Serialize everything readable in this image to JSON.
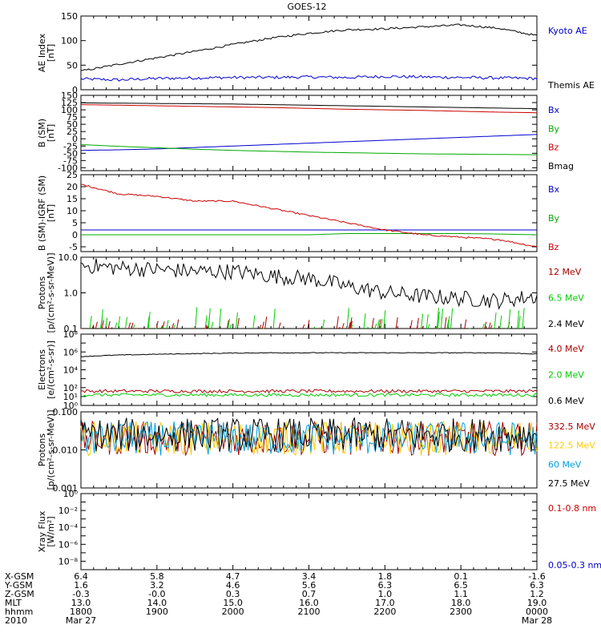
{
  "title": "GOES-12",
  "panels": [
    {
      "ylabel": [
        "AE Index",
        "[nT]"
      ],
      "type": "line",
      "scale": "linear",
      "ylim": [
        0,
        150
      ],
      "ticks": [
        0,
        50,
        100,
        150
      ],
      "tick_labels": [
        "0",
        "50",
        "100",
        "150"
      ],
      "legend": [
        {
          "label": "Kyoto AE",
          "color": "#0000cc"
        },
        {
          "label": "Themis AE",
          "color": "#000000"
        }
      ]
    },
    {
      "ylabel": [
        "B (SM)",
        "[nT]"
      ],
      "type": "line",
      "scale": "linear",
      "ylim": [
        -110,
        150
      ],
      "ticks": [
        -100,
        -75,
        -50,
        -25,
        0,
        25,
        50,
        75,
        100,
        125,
        150
      ],
      "tick_labels": [
        "-100",
        "-75",
        "-50",
        "-25",
        "0",
        "25",
        "50",
        "75",
        "100",
        "125",
        "150"
      ],
      "legend": [
        {
          "label": "Bx",
          "color": "#0000cc"
        },
        {
          "label": "By",
          "color": "#00aa00"
        },
        {
          "label": "Bz",
          "color": "#cc0000"
        },
        {
          "label": "Bmag",
          "color": "#000000"
        }
      ]
    },
    {
      "ylabel": [
        "B (SM)-IGRF (SM)",
        "[nT]"
      ],
      "type": "line",
      "scale": "linear",
      "ylim": [
        -7,
        25
      ],
      "ticks": [
        -5,
        0,
        5,
        10,
        15,
        20,
        25
      ],
      "tick_labels": [
        "-5",
        "0",
        "5",
        "10",
        "15",
        "20",
        "25"
      ],
      "legend": [
        {
          "label": "Bx",
          "color": "#0000cc"
        },
        {
          "label": "By",
          "color": "#00aa00"
        },
        {
          "label": "Bz",
          "color": "#cc0000"
        }
      ]
    },
    {
      "ylabel": [
        "Protons",
        "[p/(cm²-s-sr-MeV)]"
      ],
      "type": "line",
      "scale": "log",
      "ylim_log": [
        -1,
        1
      ],
      "ticks": [
        -1,
        0,
        1
      ],
      "tick_labels": [
        "0.1",
        "1.0",
        "10.0"
      ],
      "legend": [
        {
          "label": "12 MeV",
          "color": "#aa0000"
        },
        {
          "label": "6.5 MeV",
          "color": "#00cc00"
        },
        {
          "label": "2.4 MeV",
          "color": "#000000"
        }
      ]
    },
    {
      "ylabel": [
        "Electrons",
        "[e/(cm²-s-sr)]"
      ],
      "type": "line",
      "scale": "log",
      "ylim_log": [
        0,
        8
      ],
      "ticks": [
        0,
        1,
        2,
        3,
        4,
        5,
        6,
        7,
        8
      ],
      "tick_labels": [
        "10⁰",
        "10¹",
        "10²",
        "",
        "10⁴",
        "",
        "10⁶",
        "",
        "10⁸"
      ],
      "legend": [
        {
          "label": "4.0 MeV",
          "color": "#aa0000"
        },
        {
          "label": "2.0 MeV",
          "color": "#00cc00"
        },
        {
          "label": "0.6 MeV",
          "color": "#000000"
        }
      ]
    },
    {
      "ylabel": [
        "Protons",
        "[p/(cm²-s-sr-MeV)]"
      ],
      "type": "line",
      "scale": "log",
      "ylim_log": [
        -3,
        -1
      ],
      "ticks": [
        -3,
        -2,
        -1
      ],
      "tick_labels": [
        "0.001",
        "0.010",
        "0.100"
      ],
      "legend": [
        {
          "label": "332.5 MeV",
          "color": "#aa0000"
        },
        {
          "label": "122.5 MeV",
          "color": "#ffcc00"
        },
        {
          "label": "60 MeV",
          "color": "#00a0e0"
        },
        {
          "label": "27.5 MeV",
          "color": "#000000"
        }
      ]
    },
    {
      "ylabel": [
        "Xray Flux",
        "[W/m²]"
      ],
      "type": "line",
      "scale": "log",
      "ylim_log": [
        -9,
        0
      ],
      "ticks": [
        -9,
        -8,
        -7,
        -6,
        -5,
        -4,
        -3,
        -2,
        -1,
        0
      ],
      "tick_labels": [
        "",
        "10⁻⁸",
        "",
        "10⁻⁶",
        "",
        "10⁻⁴",
        "",
        "10⁻²",
        "",
        "10⁰"
      ],
      "legend": [
        {
          "label": "0.1-0.8 nm",
          "color": "#cc0000"
        },
        {
          "label": "0.05-0.3 nm",
          "color": "#0000cc"
        }
      ]
    }
  ],
  "x_axis": {
    "row_labels": [
      "X-GSM",
      "Y-GSM",
      "Z-GSM",
      "MLT",
      "hhmm",
      "2010"
    ],
    "columns": [
      {
        "values": [
          "6.4",
          "1.6",
          "-0.3",
          "13.0",
          "1800",
          "Mar 27"
        ]
      },
      {
        "values": [
          "5.8",
          "3.2",
          "-0.0",
          "14.0",
          "1900",
          ""
        ]
      },
      {
        "values": [
          "4.7",
          "4.6",
          "0.3",
          "15.0",
          "2000",
          ""
        ]
      },
      {
        "values": [
          "3.4",
          "5.6",
          "0.7",
          "16.0",
          "2100",
          ""
        ]
      },
      {
        "values": [
          "1.8",
          "6.3",
          "1.0",
          "17.0",
          "2200",
          ""
        ]
      },
      {
        "values": [
          "0.1",
          "6.5",
          "1.1",
          "18.0",
          "2300",
          ""
        ]
      },
      {
        "values": [
          "-1.6",
          "6.3",
          "1.2",
          "19.0",
          "0000",
          "Mar 28"
        ]
      }
    ]
  },
  "chart_data": {
    "type": "line",
    "title": "GOES-12",
    "x": [
      "1800",
      "1830",
      "1900",
      "1930",
      "2000",
      "2030",
      "2100",
      "2130",
      "2200",
      "2230",
      "2300",
      "2330",
      "0000"
    ],
    "panels": [
      {
        "ylabel": "AE Index [nT]",
        "series": [
          {
            "name": "Kyoto AE",
            "values": [
              22,
              20,
              23,
              24,
              25,
              25,
              26,
              25,
              27,
              26,
              25,
              24,
              23
            ]
          },
          {
            "name": "Themis AE",
            "values": [
              38,
              52,
              65,
              78,
              92,
              105,
              115,
              122,
              124,
              128,
              132,
              125,
              110
            ]
          }
        ]
      },
      {
        "ylabel": "B (SM) [nT]",
        "series": [
          {
            "name": "Bx",
            "values": [
              -40,
              -38,
              -35,
              -30,
              -25,
              -20,
              -15,
              -10,
              -5,
              0,
              5,
              10,
              15
            ]
          },
          {
            "name": "By",
            "values": [
              -20,
              -26,
              -31,
              -36,
              -40,
              -43,
              -46,
              -48,
              -50,
              -52,
              -53,
              -54,
              -55
            ]
          },
          {
            "name": "Bz",
            "values": [
              118,
              116,
              114,
              112,
              110,
              108,
              105,
              102,
              100,
              98,
              95,
              92,
              90
            ]
          },
          {
            "name": "Bmag",
            "values": [
              124,
              123,
              122,
              121,
              120,
              118,
              116,
              114,
              112,
              110,
              108,
              106,
              104
            ]
          }
        ]
      },
      {
        "ylabel": "B (SM)-IGRF (SM) [nT]",
        "series": [
          {
            "name": "Bx",
            "values": [
              2,
              2,
              2,
              2,
              2,
              2,
              2,
              2,
              2,
              2,
              2,
              2,
              2
            ]
          },
          {
            "name": "By",
            "values": [
              0,
              0,
              0,
              0,
              0,
              0,
              0,
              0.5,
              0.5,
              0.5,
              0.5,
              0.3,
              0
            ]
          },
          {
            "name": "Bz",
            "values": [
              21,
              17,
              16,
              14,
              14,
              11,
              8,
              5,
              2,
              0,
              -1,
              -2,
              -5
            ]
          }
        ]
      },
      {
        "ylabel": "Protons [p/(cm²-s-sr-MeV)]",
        "series": [
          {
            "name": "12 MeV",
            "values": [
              0.1,
              0.1,
              0.1,
              0.1,
              0.1,
              0.1,
              0.1,
              0.1,
              0.1,
              0.1,
              0.1,
              0.1,
              0.1
            ]
          },
          {
            "name": "6.5 MeV",
            "values": [
              0.2,
              0.2,
              0.2,
              0.2,
              0.2,
              0.2,
              0.2,
              0.2,
              0.2,
              0.2,
              0.2,
              0.2,
              0.2
            ]
          },
          {
            "name": "2.4 MeV",
            "values": [
              6,
              5,
              4.5,
              4,
              4,
              3,
              2.5,
              1.5,
              1,
              0.8,
              0.7,
              0.6,
              0.8
            ]
          }
        ]
      },
      {
        "ylabel": "Electrons [e/(cm²-s-sr)]",
        "series": [
          {
            "name": "4.0 MeV",
            "values": [
              40,
              40,
              40,
              40,
              40,
              40,
              40,
              40,
              40,
              40,
              40,
              40,
              40
            ]
          },
          {
            "name": "2.0 MeV",
            "values": [
              15,
              15,
              15,
              15,
              15,
              15,
              15,
              15,
              15,
              15,
              15,
              15,
              15
            ]
          },
          {
            "name": "0.6 MeV",
            "values": [
              300000,
              450000,
              550000,
              650000,
              750000,
              800000,
              800000,
              800000,
              800000,
              800000,
              800000,
              800000,
              600000
            ]
          }
        ]
      },
      {
        "ylabel": "Protons [p/(cm²-s-sr-MeV)]",
        "series": [
          {
            "name": "332.5 MeV",
            "values": [
              0.02,
              0.02,
              0.02,
              0.02,
              0.02,
              0.02,
              0.02,
              0.02,
              0.02,
              0.02,
              0.02,
              0.02,
              0.02
            ]
          },
          {
            "name": "122.5 MeV",
            "values": [
              0.02,
              0.02,
              0.02,
              0.02,
              0.02,
              0.02,
              0.02,
              0.02,
              0.02,
              0.02,
              0.02,
              0.02,
              0.02
            ]
          },
          {
            "name": "60 MeV",
            "values": [
              0.02,
              0.02,
              0.02,
              0.02,
              0.02,
              0.02,
              0.02,
              0.02,
              0.02,
              0.02,
              0.02,
              0.02,
              0.02
            ]
          },
          {
            "name": "27.5 MeV",
            "values": [
              0.025,
              0.025,
              0.025,
              0.025,
              0.025,
              0.025,
              0.025,
              0.025,
              0.025,
              0.025,
              0.025,
              0.025,
              0.025
            ]
          }
        ]
      },
      {
        "ylabel": "Xray Flux [W/m²]",
        "series": [
          {
            "name": "0.1-0.8 nm",
            "values": []
          },
          {
            "name": "0.05-0.3 nm",
            "values": []
          }
        ]
      }
    ]
  }
}
